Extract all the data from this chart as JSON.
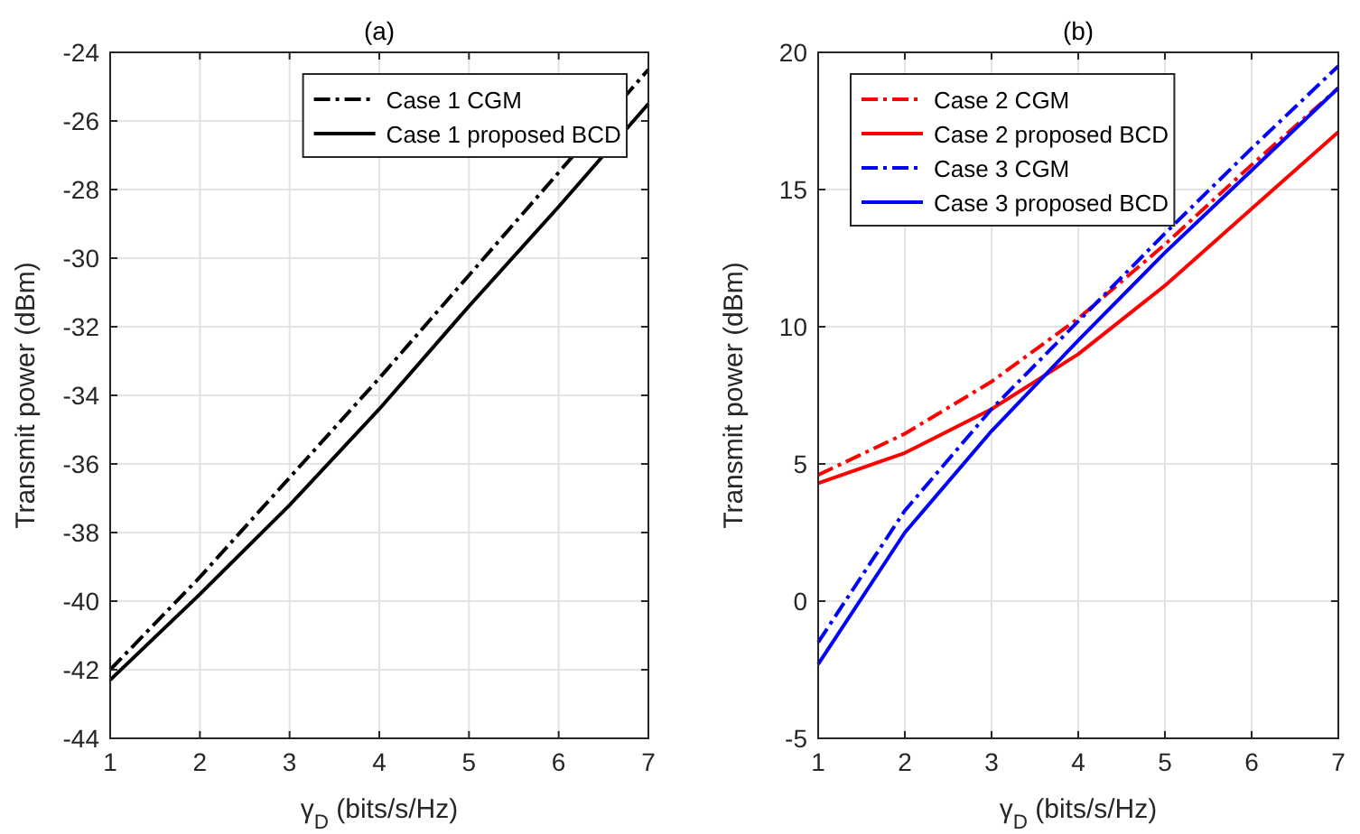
{
  "chart_data": [
    {
      "type": "line",
      "title": "(a)",
      "xlabel": "γ$_{D}$ (bits/s/Hz)",
      "ylabel": "Transmit power (dBm)",
      "x": [
        1,
        2,
        3,
        4,
        5,
        6,
        7
      ],
      "xlim": [
        1,
        7
      ],
      "xticks": [
        1,
        2,
        3,
        4,
        5,
        6,
        7
      ],
      "ylim": [
        -44,
        -24
      ],
      "yticks": [
        -44,
        -42,
        -40,
        -38,
        -36,
        -34,
        -32,
        -30,
        -28,
        -26,
        -24
      ],
      "grid": true,
      "legend": "top right",
      "marker": "none",
      "series": [
        {
          "name": "Case 1 CGM",
          "color": "#000000",
          "line_style": "dashed",
          "values": [
            -42.0,
            -39.3,
            -36.4,
            -33.5,
            -30.5,
            -27.5,
            -24.5
          ]
        },
        {
          "name": "Case 1 proposed BCD",
          "color": "#000000",
          "line_style": "solid",
          "values": [
            -42.3,
            -39.8,
            -37.2,
            -34.4,
            -31.4,
            -28.5,
            -25.5
          ]
        }
      ]
    },
    {
      "type": "line",
      "title": "(b)",
      "xlabel": "γ$_{D}$ (bits/s/Hz)",
      "ylabel": "Transmit power (dBm)",
      "x": [
        1,
        2,
        3,
        4,
        5,
        6,
        7
      ],
      "xlim": [
        1,
        7
      ],
      "xticks": [
        1,
        2,
        3,
        4,
        5,
        6,
        7
      ],
      "ylim": [
        -5,
        20
      ],
      "yticks": [
        -5,
        0,
        5,
        10,
        15,
        20
      ],
      "grid": true,
      "legend": "top left",
      "marker": "none",
      "series": [
        {
          "name": "Case 2 CGM",
          "color": "#ff0000",
          "line_style": "dashed",
          "values": [
            4.6,
            6.1,
            8.0,
            10.3,
            13.0,
            15.9,
            18.7
          ]
        },
        {
          "name": "Case 2 proposed BCD",
          "color": "#ff0000",
          "line_style": "solid",
          "values": [
            4.3,
            5.4,
            7.0,
            9.0,
            11.5,
            14.3,
            17.1
          ]
        },
        {
          "name": "Case 3 CGM",
          "color": "#0000ff",
          "line_style": "dashed",
          "values": [
            -1.5,
            3.3,
            7.0,
            10.2,
            13.4,
            16.5,
            19.5
          ]
        },
        {
          "name": "Case 3 proposed BCD",
          "color": "#0000ff",
          "line_style": "solid",
          "values": [
            -2.3,
            2.5,
            6.2,
            9.5,
            12.7,
            15.7,
            18.7
          ]
        }
      ]
    }
  ]
}
